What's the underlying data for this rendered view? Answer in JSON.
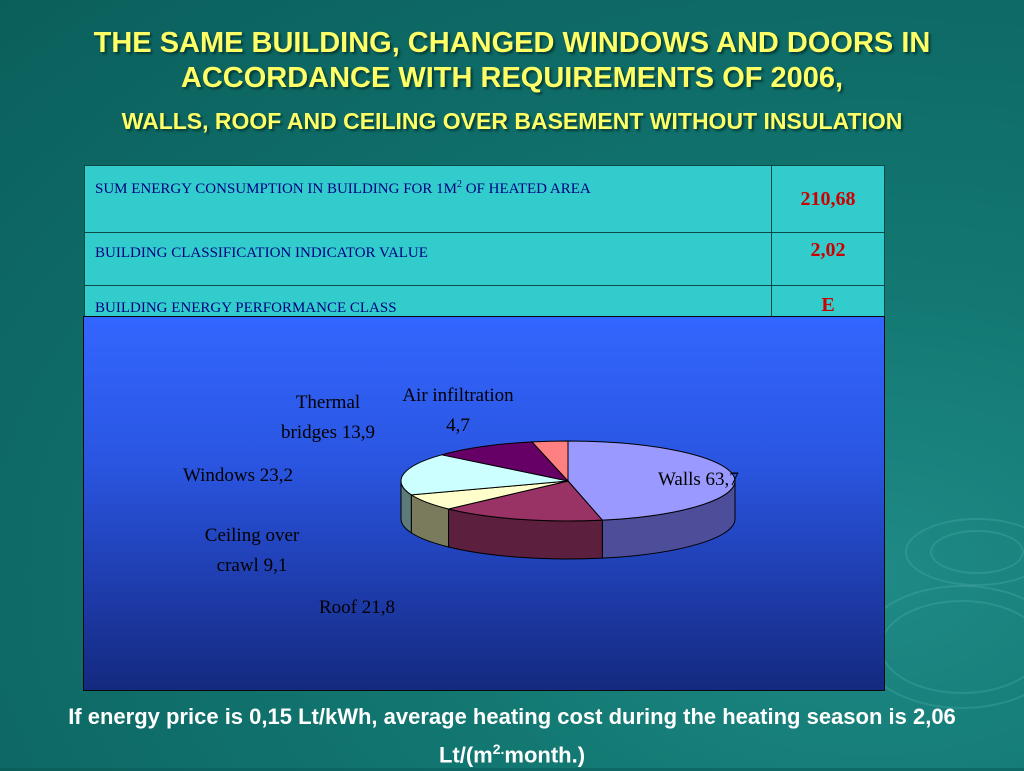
{
  "title_line1": "THE SAME BUILDING, CHANGED WINDOWS AND DOORS IN",
  "title_line2": "ACCORDANCE WITH REQUIREMENTS OF 2006,",
  "subtitle": "WALLS, ROOF AND CEILING OVER BASEMENT WITHOUT INSULATION",
  "table": {
    "rows": [
      {
        "label_pre": "SUM ENERGY CONSUMPTION IN BUILDING FOR 1M",
        "label_sup": "2",
        "label_post": " OF HEATED AREA",
        "value": "210,68"
      },
      {
        "label": "BUILDING CLASSIFICATION INDICATOR VALUE",
        "value": "2,02"
      },
      {
        "label": "BUILDING ENERGY PERFORMANCE CLASS",
        "value": "E"
      }
    ]
  },
  "chart_data": {
    "type": "pie",
    "three_d": true,
    "categories": [
      "Walls",
      "Roof",
      "Ceiling over crawl",
      "Windows",
      "Thermal bridges",
      "Air infiltration"
    ],
    "values": [
      63.7,
      21.8,
      9.1,
      23.2,
      13.9,
      4.7
    ],
    "labels": [
      [
        "Walls 63,7"
      ],
      [
        "Roof 21,8"
      ],
      [
        "Ceiling over",
        "crawl 9,1"
      ],
      [
        "Windows 23,2"
      ],
      [
        "Thermal",
        "bridges 13,9"
      ],
      [
        "Air infiltration",
        "4,7"
      ]
    ],
    "colors": [
      "#9999ff",
      "#993366",
      "#ffffcc",
      "#ccffff",
      "#660066",
      "#ff8080"
    ],
    "side_colors": [
      "#4d4d99",
      "#5c1f3d",
      "#7a7a5c",
      "#5c7a7a",
      "#330033",
      "#994d4d"
    ]
  },
  "footer_pre": "If energy price is 0,15 Lt/kWh, average heating cost during the heating season is 2,06 Lt/(m",
  "footer_sup": "2.",
  "footer_post": "month.)"
}
